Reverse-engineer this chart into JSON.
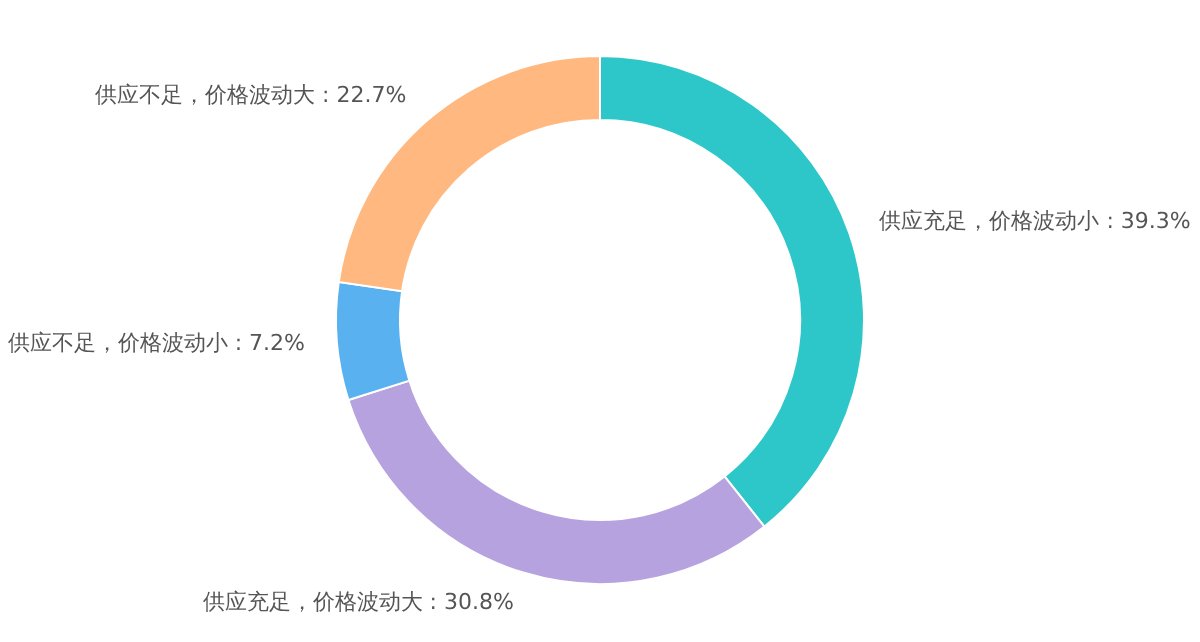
{
  "chart_data": {
    "type": "donut",
    "categories": [
      "供应充足，价格波动小",
      "供应充足，价格波动大",
      "供应不足，价格波动小",
      "供应不足，价格波动大"
    ],
    "values": [
      39.3,
      30.8,
      7.2,
      22.7
    ],
    "colors": [
      "#2ec7c9",
      "#b6a2de",
      "#5ab1ef",
      "#ffb980"
    ],
    "value_labels": [
      "39.3%",
      "30.8%",
      "7.2%",
      "22.7%"
    ],
    "legend": false
  }
}
